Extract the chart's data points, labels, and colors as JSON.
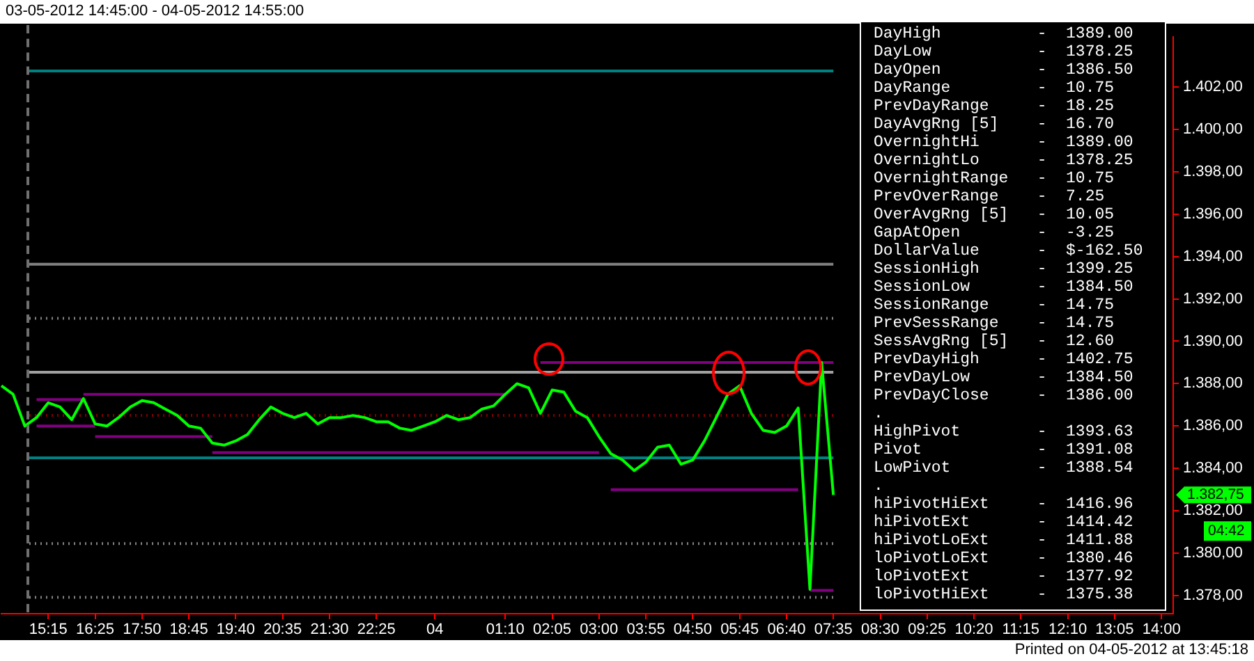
{
  "chart_data": {
    "type": "line",
    "title": "03-05-2012 14:45:00 - 04-05-2012 14:55:00",
    "categories": [
      null,
      null,
      null,
      null,
      "15:15",
      null,
      null,
      null,
      "16:25",
      null,
      null,
      null,
      "17:50",
      null,
      null,
      null,
      "18:45",
      null,
      null,
      null,
      "19:40",
      null,
      null,
      null,
      "20:35",
      null,
      null,
      null,
      "21:30",
      null,
      null,
      null,
      "22:25",
      null,
      null,
      null,
      null,
      "04",
      null,
      null,
      null,
      null,
      null,
      "01:10",
      null,
      null,
      null,
      "02:05",
      null,
      null,
      null,
      "03:00",
      null,
      null,
      null,
      "03:55",
      null,
      null,
      null,
      "04:50",
      null,
      null,
      null,
      "05:45",
      null,
      null,
      null,
      "06:40",
      null,
      null,
      null,
      "07:35",
      null,
      null,
      null,
      "08:30",
      null,
      null,
      null,
      "09:25",
      null,
      null,
      null,
      "10:20",
      null,
      null,
      null,
      "11:15",
      null,
      null,
      null,
      "12:10",
      null,
      null,
      null,
      "13:05",
      null,
      null,
      null,
      "14:00",
      null
    ],
    "ylim": [
      1377.15,
      1404.35
    ],
    "yticks": [
      {
        "value": 1378,
        "label": "1.378,00"
      },
      {
        "value": 1380,
        "label": "1.380,00"
      },
      {
        "value": 1382,
        "label": "1.382,00"
      },
      {
        "value": 1384,
        "label": "1.384,00"
      },
      {
        "value": 1386,
        "label": "1.386,00"
      },
      {
        "value": 1388,
        "label": "1.388,00"
      },
      {
        "value": 1390,
        "label": "1.390,00"
      },
      {
        "value": 1392,
        "label": "1.392,00"
      },
      {
        "value": 1394,
        "label": "1.394,00"
      },
      {
        "value": 1396,
        "label": "1.396,00"
      },
      {
        "value": 1398,
        "label": "1.398,00"
      },
      {
        "value": 1400,
        "label": "1.400,00"
      },
      {
        "value": 1402,
        "label": "1.402,00"
      }
    ],
    "grid": false,
    "legend": false,
    "marker": "none",
    "ref_lines": [
      {
        "axis": "y",
        "value": 1402.75,
        "color": "#008080"
      },
      {
        "axis": "y",
        "value": 1393.63,
        "color": "#808080"
      },
      {
        "axis": "y",
        "value": 1391.08,
        "color": "#808080",
        "line_style": "dotted"
      },
      {
        "axis": "y",
        "value": 1388.54,
        "color": "#a0a0a0"
      },
      {
        "axis": "y",
        "value": 1386.5,
        "color": "#800000",
        "line_style": "dotted"
      },
      {
        "axis": "y",
        "value": 1384.5,
        "color": "#008080"
      },
      {
        "axis": "y",
        "value": 1380.46,
        "color": "#808080",
        "line_style": "dotted"
      },
      {
        "axis": "y",
        "value": 1377.92,
        "color": "#808080",
        "line_style": "dotted"
      }
    ],
    "series": [
      {
        "color": "#800080",
        "values": [
          null,
          null,
          null,
          null,
          null,
          null,
          null,
          null,
          null,
          null,
          null,
          null,
          null,
          null,
          null,
          null,
          null,
          null,
          null,
          null,
          null,
          null,
          null,
          null,
          null,
          null,
          null,
          null,
          null,
          null,
          null,
          null,
          null,
          null,
          null,
          null,
          null,
          null,
          null,
          null,
          null,
          null,
          null,
          null,
          null,
          null,
          1389,
          1389,
          1389,
          1389,
          1389,
          1389,
          1389,
          1389,
          1389,
          1389,
          1389,
          1389,
          1389,
          1389,
          1389,
          1389,
          1389,
          1389,
          1389,
          1389,
          1389,
          1389,
          1389,
          1389,
          1389,
          1389,
          null,
          null,
          null,
          null,
          null,
          null,
          null,
          null,
          null,
          null,
          null,
          null,
          null,
          null,
          null,
          null,
          null,
          null,
          null,
          null,
          null,
          null,
          null,
          null,
          null,
          null,
          null,
          null,
          null
        ]
      },
      {
        "color": "#800080",
        "values": [
          null,
          null,
          null,
          null,
          null,
          null,
          null,
          1387.5,
          1387.5,
          1387.5,
          1387.5,
          1387.5,
          1387.5,
          1387.5,
          1387.5,
          1387.5,
          1387.5,
          1387.5,
          1387.5,
          1387.5,
          1387.5,
          1387.5,
          1387.5,
          1387.5,
          1387.5,
          1387.5,
          1387.5,
          1387.5,
          1387.5,
          1387.5,
          1387.5,
          1387.5,
          1387.5,
          1387.5,
          1387.5,
          1387.5,
          1387.5,
          1387.5,
          1387.5,
          1387.5,
          1387.5,
          1387.5,
          1387.5,
          1387.5,
          null,
          null,
          null,
          null,
          null,
          null,
          null,
          null,
          null,
          null,
          null,
          null,
          null,
          null,
          null,
          null,
          null,
          null,
          null,
          null,
          null,
          null,
          null,
          null,
          null,
          null,
          null,
          null,
          null,
          null,
          null,
          null,
          null,
          null,
          null,
          null,
          null,
          null,
          null,
          null,
          null,
          null,
          null,
          null,
          null,
          null,
          null,
          null,
          null,
          null,
          null,
          null,
          null,
          null,
          null,
          null,
          null
        ]
      },
      {
        "color": "#800080",
        "values": [
          null,
          null,
          null,
          1387.25,
          1387.25,
          1387.25,
          1387.25,
          1387.25,
          null,
          null,
          null,
          null,
          null,
          null,
          null,
          null,
          null,
          null,
          null,
          null,
          null,
          null,
          null,
          null,
          null,
          null,
          null,
          null,
          null,
          null,
          null,
          null,
          null,
          null,
          null,
          null,
          null,
          null,
          null,
          null,
          null,
          null,
          null,
          null,
          null,
          null,
          null,
          null,
          null,
          null,
          null,
          null,
          null,
          null,
          null,
          null,
          null,
          null,
          null,
          null,
          null,
          null,
          null,
          null,
          null,
          null,
          null,
          null,
          null,
          null,
          null,
          null,
          null,
          null,
          null,
          null,
          null,
          null,
          null,
          null,
          null,
          null,
          null,
          null,
          null,
          null,
          null,
          null,
          null,
          null,
          null,
          null,
          null,
          null,
          null,
          null,
          null,
          null,
          null,
          null,
          null
        ]
      },
      {
        "color": "#800080",
        "values": [
          null,
          null,
          null,
          1386,
          1386,
          1386,
          1386,
          1386,
          1386,
          null,
          null,
          null,
          null,
          null,
          null,
          null,
          null,
          null,
          null,
          null,
          null,
          null,
          null,
          null,
          null,
          null,
          null,
          null,
          null,
          null,
          null,
          null,
          null,
          null,
          null,
          null,
          null,
          null,
          null,
          null,
          null,
          null,
          null,
          null,
          null,
          null,
          null,
          null,
          null,
          null,
          null,
          null,
          null,
          null,
          null,
          null,
          null,
          null,
          null,
          null,
          null,
          null,
          null,
          null,
          null,
          null,
          null,
          null,
          null,
          null,
          null,
          null,
          null,
          null,
          null,
          null,
          null,
          null,
          null,
          null,
          null,
          null,
          null,
          null,
          null,
          null,
          null,
          null,
          null,
          null,
          null,
          null,
          null,
          null,
          null,
          null,
          null,
          null,
          null,
          null,
          null
        ]
      },
      {
        "color": "#800080",
        "values": [
          null,
          null,
          null,
          null,
          null,
          null,
          null,
          null,
          1385.5,
          1385.5,
          1385.5,
          1385.5,
          1385.5,
          1385.5,
          1385.5,
          1385.5,
          1385.5,
          1385.5,
          1385.5,
          null,
          null,
          null,
          null,
          null,
          null,
          null,
          null,
          null,
          null,
          null,
          null,
          null,
          null,
          null,
          null,
          null,
          null,
          null,
          null,
          null,
          null,
          null,
          null,
          null,
          null,
          null,
          null,
          null,
          null,
          null,
          null,
          null,
          null,
          null,
          null,
          null,
          null,
          null,
          null,
          null,
          null,
          null,
          null,
          null,
          null,
          null,
          null,
          null,
          null,
          null,
          null,
          null,
          null,
          null,
          null,
          null,
          null,
          null,
          null,
          null,
          null,
          null,
          null,
          null,
          null,
          null,
          null,
          null,
          null,
          null,
          null,
          null,
          null,
          null,
          null,
          null,
          null,
          null,
          null,
          null,
          null
        ]
      },
      {
        "color": "#800080",
        "values": [
          null,
          null,
          null,
          null,
          null,
          null,
          null,
          null,
          null,
          null,
          null,
          null,
          null,
          null,
          null,
          null,
          null,
          null,
          1384.75,
          1384.75,
          1384.75,
          1384.75,
          1384.75,
          1384.75,
          1384.75,
          1384.75,
          1384.75,
          1384.75,
          1384.75,
          1384.75,
          1384.75,
          1384.75,
          1384.75,
          1384.75,
          1384.75,
          1384.75,
          1384.75,
          1384.75,
          1384.75,
          1384.75,
          1384.75,
          1384.75,
          1384.75,
          1384.75,
          1384.75,
          1384.75,
          1384.75,
          1384.75,
          1384.75,
          1384.75,
          1384.75,
          1384.75,
          null,
          null,
          null,
          null,
          null,
          null,
          null,
          null,
          null,
          null,
          null,
          null,
          null,
          null,
          null,
          null,
          null,
          null,
          null,
          null,
          null,
          null,
          null,
          null,
          null,
          null,
          null,
          null,
          null,
          null,
          null,
          null,
          null,
          null,
          null,
          null,
          null,
          null,
          null,
          null,
          null,
          null,
          null,
          null,
          null,
          null,
          null,
          null,
          null
        ]
      },
      {
        "color": "#800080",
        "values": [
          null,
          null,
          null,
          null,
          null,
          null,
          null,
          null,
          null,
          null,
          null,
          null,
          null,
          null,
          null,
          null,
          null,
          null,
          null,
          null,
          null,
          null,
          null,
          null,
          null,
          null,
          null,
          null,
          null,
          null,
          null,
          null,
          null,
          null,
          null,
          null,
          null,
          null,
          null,
          null,
          null,
          null,
          null,
          null,
          null,
          null,
          null,
          null,
          null,
          null,
          null,
          null,
          1383,
          1383,
          1383,
          1383,
          1383,
          1383,
          1383,
          1383,
          1383,
          1383,
          1383,
          1383,
          1383,
          1383,
          1383,
          1383,
          1383,
          null,
          null,
          null,
          null,
          null,
          null,
          null,
          null,
          null,
          null,
          null,
          null,
          null,
          null,
          null,
          null,
          null,
          null,
          null,
          null,
          null,
          null,
          null,
          null,
          null,
          null,
          null,
          null,
          null,
          null,
          null,
          null
        ]
      },
      {
        "color": "#800080",
        "values": [
          null,
          null,
          null,
          null,
          null,
          null,
          null,
          null,
          null,
          null,
          null,
          null,
          null,
          null,
          null,
          null,
          null,
          null,
          null,
          null,
          null,
          null,
          null,
          null,
          null,
          null,
          null,
          null,
          null,
          null,
          null,
          null,
          null,
          null,
          null,
          null,
          null,
          null,
          null,
          null,
          null,
          null,
          null,
          null,
          null,
          null,
          null,
          null,
          null,
          null,
          null,
          null,
          null,
          null,
          null,
          null,
          null,
          null,
          null,
          null,
          null,
          null,
          null,
          null,
          null,
          null,
          null,
          null,
          null,
          1378.25,
          1378.25,
          1378.25,
          null,
          null,
          null,
          null,
          null,
          null,
          null,
          null,
          null,
          null,
          null,
          null,
          null,
          null,
          null,
          null,
          null,
          null,
          null,
          null,
          null,
          null,
          null,
          null,
          null,
          null,
          null,
          null,
          null
        ]
      },
      {
        "color": "#00ff00",
        "values": [
          1387.9,
          1387.5,
          1386.0,
          1386.4,
          1387.1,
          1386.9,
          1386.3,
          1387.3,
          1386.1,
          1386.0,
          1386.4,
          1386.9,
          1387.2,
          1387.1,
          1386.8,
          1386.5,
          1386.0,
          1385.9,
          1385.2,
          1385.1,
          1385.3,
          1385.6,
          1386.3,
          1386.9,
          1386.6,
          1386.4,
          1386.6,
          1386.1,
          1386.4,
          1386.4,
          1386.5,
          1386.4,
          1386.2,
          1386.2,
          1385.9,
          1385.8,
          1386.0,
          1386.2,
          1386.5,
          1386.3,
          1386.4,
          1386.8,
          1386.95,
          1387.5,
          1388.0,
          1387.8,
          1386.6,
          1387.7,
          1387.6,
          1386.7,
          1386.4,
          1385.5,
          1384.7,
          1384.4,
          1383.9,
          1384.3,
          1385.0,
          1385.1,
          1384.2,
          1384.4,
          1385.3,
          1386.4,
          1387.5,
          1387.9,
          1386.6,
          1385.8,
          1385.7,
          1386.0,
          1386.85,
          1378.3,
          1389,
          1382.75,
          null,
          null,
          null,
          null,
          null,
          null,
          null,
          null,
          null,
          null,
          null,
          null,
          null,
          null,
          null,
          null,
          null,
          null,
          null,
          null,
          null,
          null,
          null,
          null,
          null,
          null,
          null,
          null,
          null
        ]
      }
    ],
    "annotations": [
      "1.382,75",
      "04:42",
      "Printed on 04-05-2012 at 13:45:18",
      "DayHigh          -  1389.00",
      "DayLow           -  1378.25",
      "DayOpen          -  1386.50",
      "DayRange         -  10.75",
      "PrevDayRange     -  18.25",
      "DayAvgRng [5]    -  16.70",
      "OvernightHi      -  1389.00",
      "OvernightLo      -  1378.25",
      "OvernightRange   -  10.75",
      "PrevOverRange    -  7.25",
      "OverAvgRng [5]   -  10.05",
      "GapAtOpen        -  -3.25",
      "DollarValue      -  $-162.50",
      "SessionHigh      -  1399.25",
      "SessionLow       -  1384.50",
      "SessionRange     -  14.75",
      "PrevSessRange    -  14.75",
      "SessAvgRng [5]   -  12.60",
      "PrevDayHigh      -  1402.75",
      "PrevDayLow       -  1384.50",
      "PrevDayClose     -  1386.00",
      ".",
      "HighPivot        -  1393.63",
      "Pivot            -  1391.08",
      "LowPivot         -  1388.54",
      ".",
      "hiPivotHiExt     -  1416.96",
      "hiPivotExt       -  1414.42",
      "hiPivotLoExt     -  1411.88",
      "loPivotLoExt     -  1380.46",
      "loPivotExt       -  1377.92",
      "loPivotHiExt     -  1375.38"
    ]
  }
}
